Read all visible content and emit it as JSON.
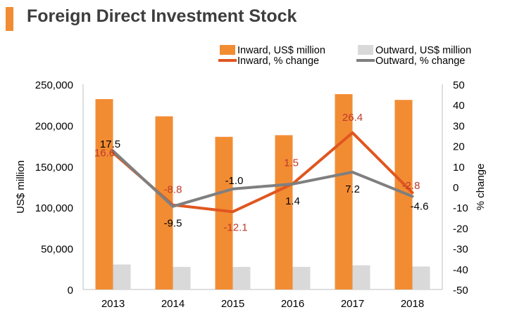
{
  "chart_data": {
    "type": "bar",
    "title": "Foreign Direct Investment Stock",
    "categories": [
      "2013",
      "2014",
      "2015",
      "2016",
      "2017",
      "2018"
    ],
    "ylabel": "US$ million",
    "y2label": "% change",
    "ylim": [
      0,
      250000
    ],
    "y2lim": [
      -50,
      50
    ],
    "yticks": [
      "0",
      "50,000",
      "100,000",
      "150,000",
      "200,000",
      "250,000"
    ],
    "y2ticks": [
      "-50",
      "-40",
      "-30",
      "-20",
      "-10",
      "0",
      "10",
      "20",
      "30",
      "40",
      "50"
    ],
    "bar_series": [
      {
        "name": "Inward, US$ million",
        "color": "#f28c33",
        "values": [
          232000,
          211000,
          186000,
          188000,
          238000,
          231000
        ]
      },
      {
        "name": "Outward, US$ million",
        "color": "#d9d9d9",
        "values": [
          30500,
          27500,
          27500,
          27500,
          29500,
          28000
        ]
      }
    ],
    "line_series": [
      {
        "name": "Inward, % change",
        "color": "#e0561f",
        "label_color": "#c0392b",
        "values": [
          16.6,
          -8.8,
          -12.1,
          1.5,
          26.4,
          -2.8
        ],
        "labels": [
          "16.6",
          "-8.8",
          "-12.1",
          "1.5",
          "26.4",
          "-2.8"
        ]
      },
      {
        "name": "Outward, % change",
        "color": "#7f7f7f",
        "label_color": "#000000",
        "values": [
          17.5,
          -9.5,
          -1.0,
          1.4,
          7.2,
          -4.6
        ],
        "labels": [
          "17.5",
          "-9.5",
          "-1.0",
          "1.4",
          "7.2",
          "-4.6"
        ]
      }
    ],
    "legend": "top-right"
  }
}
